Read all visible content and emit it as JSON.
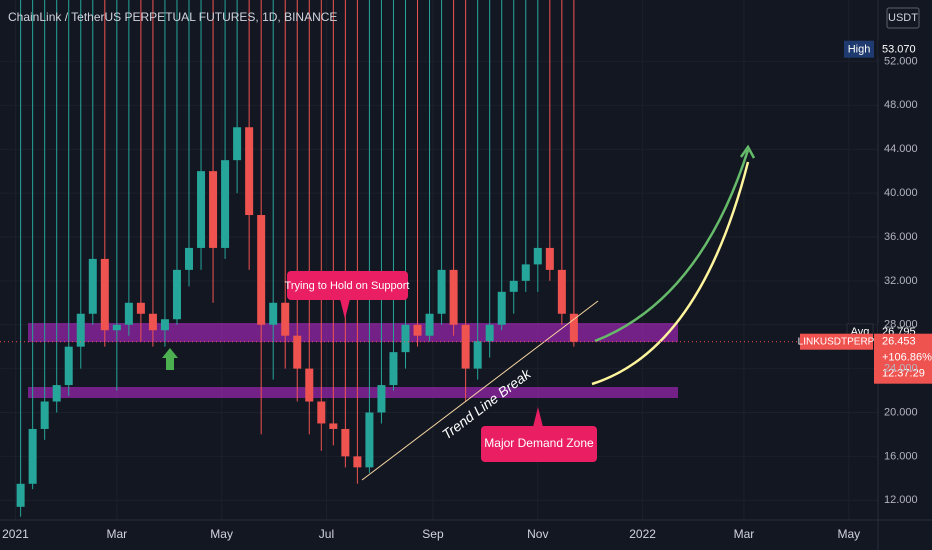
{
  "header": {
    "title": "ChainLink / TetherUS PERPETUAL FUTURES, 1D, BINANCE",
    "currency": "USDT"
  },
  "annotations": {
    "support": "Trying to Hold on Support",
    "demand": "Major Demand Zone",
    "trend": "Trend Line Break"
  },
  "chart_data": {
    "type": "candlestick",
    "x": [
      3,
      10,
      17,
      24,
      31,
      38,
      45,
      52,
      59,
      66,
      73,
      80,
      87,
      94,
      101,
      108,
      115,
      122,
      129,
      136,
      143,
      150,
      157,
      164,
      171,
      178,
      185,
      192,
      199,
      206,
      213,
      220,
      227,
      234,
      241,
      248,
      255,
      262,
      269,
      276,
      283,
      290,
      297,
      304,
      311,
      318,
      325
    ],
    "open": [
      11.4,
      13.5,
      18.5,
      21,
      22.5,
      26,
      29,
      34,
      27.5,
      28,
      30,
      29,
      27.5,
      28.5,
      33,
      35,
      42,
      35,
      43,
      46,
      38,
      28,
      30,
      27,
      24,
      21,
      19,
      18.5,
      16,
      15,
      20,
      22.5,
      25.5,
      28,
      27,
      29,
      33,
      28,
      24,
      26.5,
      28,
      31,
      32,
      33.5,
      35,
      33,
      29
    ],
    "high": {
      "name": "High",
      "value": 53.07,
      "label": "53.070"
    },
    "low": [
      10.5,
      13,
      17.5,
      20,
      21.5,
      24,
      28,
      26,
      22,
      27,
      26.5,
      26,
      26,
      28,
      31.5,
      33,
      30,
      34,
      40,
      33,
      18,
      23,
      24,
      21,
      18,
      16.5,
      17,
      15,
      13.5,
      14.5,
      19,
      22,
      24,
      26,
      26.5,
      28,
      27,
      21,
      23,
      25,
      27.5,
      29,
      31,
      31,
      32,
      28,
      26
    ],
    "close": [
      13.5,
      18.5,
      21,
      22.5,
      26,
      29,
      34,
      27.5,
      28,
      30,
      29,
      27.5,
      28.5,
      33,
      35,
      42,
      35,
      43,
      46,
      38,
      28,
      30,
      27,
      24,
      21,
      19,
      18.5,
      16,
      15,
      20,
      22.5,
      25.5,
      28,
      27,
      29,
      33,
      28,
      24,
      26.5,
      28,
      31,
      32,
      33.5,
      35,
      33,
      29,
      26.453
    ],
    "up_color": "#26a69a",
    "down_color": "#ef5350",
    "xlim": [
      -9,
      502
    ],
    "xticks": [
      {
        "value": 0,
        "label": "2021"
      },
      {
        "value": 59,
        "label": "Mar"
      },
      {
        "value": 120,
        "label": "May"
      },
      {
        "value": 181,
        "label": "Jul"
      },
      {
        "value": 243,
        "label": "Sep"
      },
      {
        "value": 304,
        "label": "Nov"
      },
      {
        "value": 365,
        "label": "2022"
      },
      {
        "value": 424,
        "label": "Mar"
      },
      {
        "value": 485,
        "label": "May"
      }
    ],
    "ylim": [
      10.2,
      57.6
    ],
    "yticks": [
      {
        "value": 12,
        "label": "12.000"
      },
      {
        "value": 16,
        "label": "16.000"
      },
      {
        "value": 20,
        "label": "20.000"
      },
      {
        "value": 24,
        "label": "24.000"
      },
      {
        "value": 28,
        "label": "28.000"
      },
      {
        "value": 32,
        "label": "32.000"
      },
      {
        "value": 36,
        "label": "36.000"
      },
      {
        "value": 40,
        "label": "40.000"
      },
      {
        "value": 44,
        "label": "44.000"
      },
      {
        "value": 48,
        "label": "48.000"
      },
      {
        "value": 52,
        "label": "52.000"
      }
    ],
    "grid": true,
    "avg": {
      "name": "Avg",
      "value": 26.795,
      "label": "26.795"
    },
    "last": {
      "name": "LINKUSDTPERP",
      "value": 26.453,
      "label": "26.453",
      "change": "+106.86%",
      "countdown": "12:37:29"
    }
  }
}
